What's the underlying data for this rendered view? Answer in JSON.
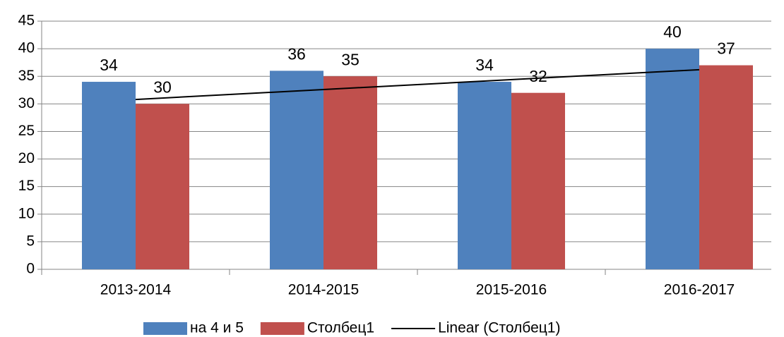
{
  "chart_data": {
    "type": "bar",
    "categories": [
      "2013-2014",
      "2014-2015",
      "2015-2016",
      "2016-2017"
    ],
    "series": [
      {
        "name": "на 4 и 5",
        "color": "#4f81bd",
        "values": [
          34,
          36,
          34,
          40
        ]
      },
      {
        "name": "Столбец1",
        "color": "#c0504d",
        "values": [
          30,
          35,
          32,
          37
        ]
      }
    ],
    "trendline": {
      "name": "Linear (Столбец1)",
      "color": "#000000",
      "values": [
        30.8,
        36.2
      ]
    },
    "ylim": [
      0,
      45
    ],
    "yticks": [
      0,
      5,
      10,
      15,
      20,
      25,
      30,
      35,
      40,
      45
    ],
    "grid": true,
    "legend": "bottom"
  }
}
